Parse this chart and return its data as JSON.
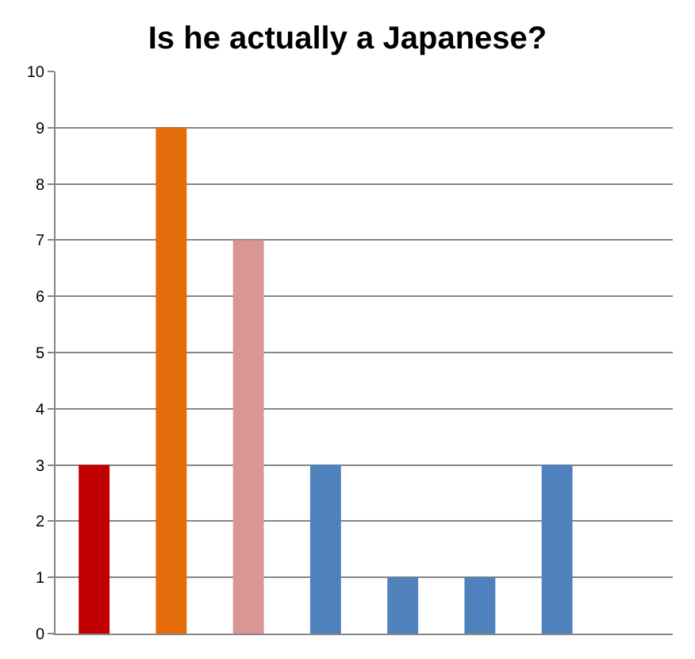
{
  "chart_data": {
    "type": "bar",
    "title": "Is he actually a Japanese?",
    "categories": [
      null,
      null,
      null,
      null,
      null,
      null,
      null,
      null
    ],
    "values": [
      3,
      9,
      7,
      3,
      1,
      1,
      3,
      null
    ],
    "colors": [
      "#c00000",
      "#e46c0a",
      "#d99694",
      "#4f81bd",
      "#4f81bd",
      "#4f81bd",
      "#4f81bd",
      "#4f81bd"
    ],
    "ylim": [
      0,
      10
    ],
    "yticks": [
      0,
      1,
      2,
      3,
      4,
      5,
      6,
      7,
      8,
      9,
      10
    ],
    "grid": "y"
  }
}
